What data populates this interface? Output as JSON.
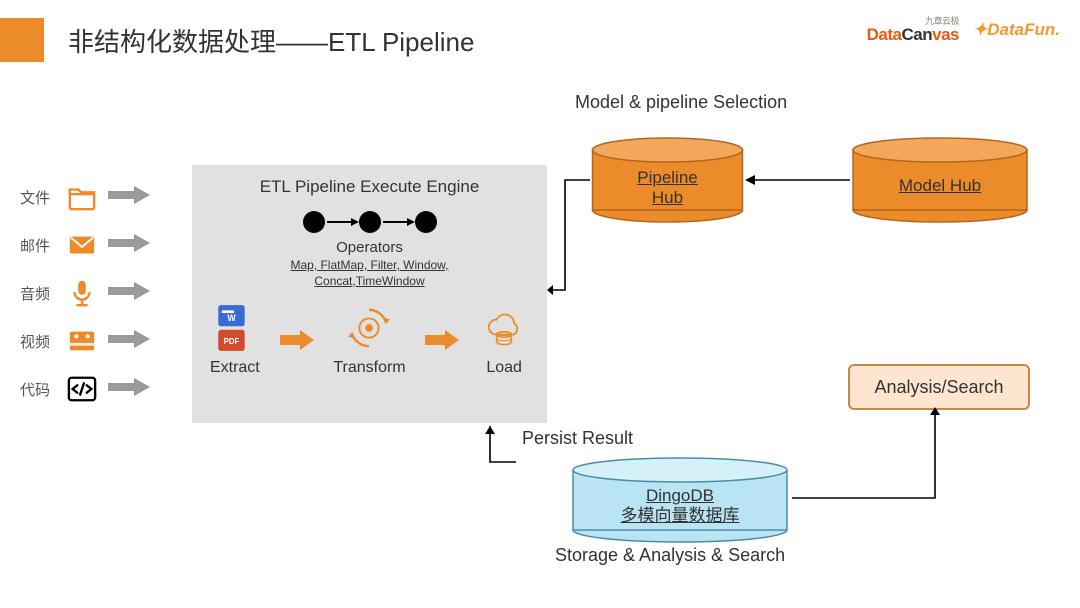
{
  "title": "非结构化数据处理——ETL Pipeline",
  "logos": {
    "brand1_sup": "九章云极",
    "brand1_a": "Data",
    "brand1_b": "Can",
    "brand1_c": "vas",
    "brand2": "DataFun."
  },
  "inputs": [
    {
      "label": "文件",
      "icon": "folder"
    },
    {
      "label": "邮件",
      "icon": "mail"
    },
    {
      "label": "音频",
      "icon": "mic"
    },
    {
      "label": "视频",
      "icon": "video"
    },
    {
      "label": "代码",
      "icon": "code"
    }
  ],
  "engine": {
    "title": "ETL Pipeline Execute Engine",
    "operators_title": "Operators",
    "operators_list": "Map, FlatMap, Filter, Window,\nConcat,TimeWindow",
    "steps": {
      "extract": "Extract",
      "transform": "Transform",
      "load": "Load"
    }
  },
  "captions": {
    "top": "Model & pipeline Selection",
    "persist": "Persist Result",
    "storage": "Storage & Analysis & Search"
  },
  "cylinders": {
    "pipeline_hub": {
      "label": "Pipeline\nHub",
      "fill": "#ec8b2a",
      "stroke": "#b5651d"
    },
    "model_hub": {
      "label": "Model Hub",
      "fill": "#ec8b2a",
      "stroke": "#b5651d"
    },
    "dingodb": {
      "label": "DingoDB\n多模向量数据库",
      "fill": "#b9e4f3",
      "stroke": "#4a8ca8"
    }
  },
  "analysis_box": "Analysis/Search",
  "colors": {
    "orange": "#ec8b2a",
    "orange_dark": "#d5761e",
    "gray_bg": "#e1e1e1",
    "arrow_gray": "#9a9a9a",
    "blue_fill": "#b9e4f3"
  }
}
